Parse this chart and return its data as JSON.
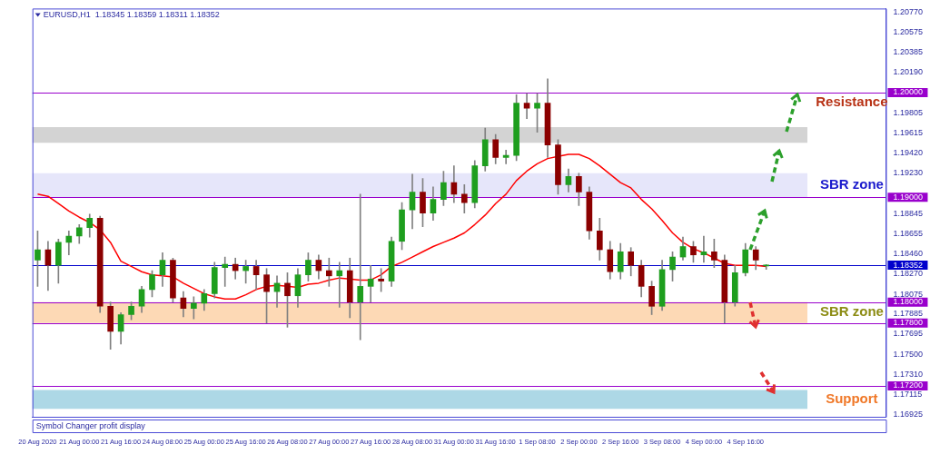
{
  "chart_data": {
    "type": "candlestick",
    "title": "EURUSD,H1  1.18345 1.18359 1.18311 1.18352",
    "categories": [
      "20 Aug 2020",
      null,
      null,
      null,
      "21 Aug 00:00",
      null,
      null,
      null,
      "21 Aug 16:00",
      null,
      null,
      null,
      "24 Aug 08:00",
      null,
      null,
      null,
      "25 Aug 00:00",
      null,
      null,
      null,
      "25 Aug 16:00",
      null,
      null,
      null,
      "26 Aug 08:00",
      null,
      null,
      null,
      "27 Aug 00:00",
      null,
      null,
      null,
      "27 Aug 16:00",
      null,
      null,
      null,
      "28 Aug 08:00",
      null,
      null,
      null,
      "31 Aug 00:00",
      null,
      null,
      null,
      "31 Aug 16:00",
      null,
      null,
      null,
      "1 Sep 08:00",
      null,
      null,
      null,
      "2 Sep 00:00",
      null,
      null,
      null,
      "2 Sep 16:00",
      null,
      null,
      null,
      "3 Sep 08:00",
      null,
      null,
      null,
      "4 Sep 00:00",
      null,
      null,
      null,
      "4 Sep 16:00",
      null,
      null,
      null,
      null,
      null,
      null,
      null,
      null,
      null,
      null,
      null,
      null,
      null
    ],
    "ohlc": [
      [
        1.184,
        1.1868,
        1.1815,
        1.185
      ],
      [
        1.185,
        1.1858,
        1.1811,
        1.1835
      ],
      [
        1.1835,
        1.186,
        1.1818,
        1.1857
      ],
      [
        1.1857,
        1.1868,
        1.1845,
        1.1863
      ],
      [
        1.1863,
        1.1874,
        1.1856,
        1.1871
      ],
      [
        1.1871,
        1.1884,
        1.1862,
        1.188
      ],
      [
        1.188,
        1.1882,
        1.179,
        1.1796
      ],
      [
        1.1796,
        1.18,
        1.1755,
        1.1772
      ],
      [
        1.1772,
        1.179,
        1.176,
        1.1788
      ],
      [
        1.1788,
        1.18,
        1.1783,
        1.1796
      ],
      [
        1.1796,
        1.1815,
        1.179,
        1.1812
      ],
      [
        1.1812,
        1.183,
        1.1805,
        1.1826
      ],
      [
        1.1826,
        1.1847,
        1.1815,
        1.184
      ],
      [
        1.184,
        1.1842,
        1.18,
        1.1804
      ],
      [
        1.1804,
        1.181,
        1.1786,
        1.1794
      ],
      [
        1.1794,
        1.1805,
        1.1784,
        1.1799
      ],
      [
        1.1799,
        1.1812,
        1.1792,
        1.1808
      ],
      [
        1.1808,
        1.1838,
        1.1804,
        1.1833
      ],
      [
        1.1833,
        1.1843,
        1.1815,
        1.1836
      ],
      [
        1.1836,
        1.1842,
        1.1822,
        1.183
      ],
      [
        1.183,
        1.184,
        1.1818,
        1.1834
      ],
      [
        1.1834,
        1.184,
        1.1812,
        1.1826
      ],
      [
        1.1826,
        1.1832,
        1.178,
        1.181
      ],
      [
        1.181,
        1.1825,
        1.1795,
        1.1818
      ],
      [
        1.1818,
        1.1828,
        1.1776,
        1.1806
      ],
      [
        1.1806,
        1.1832,
        1.1795,
        1.1826
      ],
      [
        1.1826,
        1.1847,
        1.182,
        1.184
      ],
      [
        1.184,
        1.1845,
        1.1822,
        1.183
      ],
      [
        1.183,
        1.1842,
        1.1815,
        1.1825
      ],
      [
        1.1825,
        1.1838,
        1.1795,
        1.183
      ],
      [
        1.183,
        1.1842,
        1.1785,
        1.18
      ],
      [
        1.18,
        1.1903,
        1.1764,
        1.1815
      ],
      [
        1.1815,
        1.1835,
        1.18,
        1.1822
      ],
      [
        1.1822,
        1.1832,
        1.181,
        1.182
      ],
      [
        1.182,
        1.1862,
        1.1815,
        1.1858
      ],
      [
        1.1858,
        1.1895,
        1.185,
        1.1888
      ],
      [
        1.1888,
        1.1922,
        1.187,
        1.1905
      ],
      [
        1.1905,
        1.1918,
        1.1872,
        1.1885
      ],
      [
        1.1885,
        1.191,
        1.1878,
        1.1898
      ],
      [
        1.1898,
        1.1925,
        1.1892,
        1.1914
      ],
      [
        1.1914,
        1.193,
        1.1895,
        1.1903
      ],
      [
        1.1903,
        1.1912,
        1.1885,
        1.1895
      ],
      [
        1.1895,
        1.1935,
        1.189,
        1.193
      ],
      [
        1.193,
        1.1966,
        1.1925,
        1.1955
      ],
      [
        1.1955,
        1.196,
        1.1932,
        1.1938
      ],
      [
        1.1938,
        1.1945,
        1.1932,
        1.194
      ],
      [
        1.194,
        1.1998,
        1.1935,
        1.199
      ],
      [
        1.199,
        1.1999,
        1.1975,
        1.1985
      ],
      [
        1.1985,
        1.1999,
        1.1962,
        1.199
      ],
      [
        1.199,
        1.2013,
        1.1938,
        1.195
      ],
      [
        1.195,
        1.1955,
        1.1903,
        1.1912
      ],
      [
        1.1912,
        1.1927,
        1.1905,
        1.192
      ],
      [
        1.192,
        1.1923,
        1.1892,
        1.1905
      ],
      [
        1.1905,
        1.191,
        1.186,
        1.1868
      ],
      [
        1.1868,
        1.188,
        1.184,
        1.185
      ],
      [
        1.185,
        1.1858,
        1.1822,
        1.1829
      ],
      [
        1.1829,
        1.1856,
        1.1822,
        1.1848
      ],
      [
        1.1848,
        1.1852,
        1.1825,
        1.1835
      ],
      [
        1.1835,
        1.184,
        1.1805,
        1.1815
      ],
      [
        1.1815,
        1.182,
        1.1788,
        1.1796
      ],
      [
        1.1796,
        1.184,
        1.1792,
        1.1831
      ],
      [
        1.1831,
        1.1848,
        1.182,
        1.1843
      ],
      [
        1.1843,
        1.1862,
        1.184,
        1.1853
      ],
      [
        1.1853,
        1.1858,
        1.1838,
        1.1845
      ],
      [
        1.1845,
        1.1863,
        1.1838,
        1.1848
      ],
      [
        1.1848,
        1.186,
        1.1833,
        1.184
      ],
      [
        1.184,
        1.1845,
        1.178,
        1.18
      ],
      [
        1.18,
        1.1835,
        1.1796,
        1.1828
      ],
      [
        1.1828,
        1.1856,
        1.1825,
        1.185
      ],
      [
        1.185,
        1.1853,
        1.1831,
        1.184
      ],
      [
        1.18345,
        1.18359,
        1.18311,
        1.18352
      ],
      null,
      null,
      null,
      null,
      null,
      null,
      null,
      null,
      null,
      null,
      null
    ],
    "series": [
      {
        "type": "line",
        "color": "#ff0000",
        "values": [
          1.1903,
          1.1901,
          1.1894,
          1.1887,
          1.1881,
          1.1876,
          1.1869,
          1.1857,
          1.1839,
          1.1834,
          1.1829,
          1.1826,
          1.1825,
          1.1824,
          1.1818,
          1.1813,
          1.1808,
          1.1805,
          1.1803,
          1.1803,
          1.1807,
          1.1812,
          1.1815,
          1.1816,
          1.1815,
          1.1814,
          1.1817,
          1.1818,
          1.1821,
          1.1823,
          1.1822,
          1.1821,
          1.1821,
          1.1826,
          1.1834,
          1.1838,
          1.1843,
          1.1848,
          1.1853,
          1.1857,
          1.1861,
          1.1866,
          1.1874,
          1.1883,
          1.1894,
          1.1903,
          1.1916,
          1.1925,
          1.1932,
          1.1937,
          1.1939,
          1.1941,
          1.1941,
          1.1937,
          1.193,
          1.1922,
          1.1914,
          1.1909,
          1.1898,
          1.1889,
          1.1878,
          1.1866,
          1.1857,
          1.1851,
          1.1847,
          1.1842,
          1.1837,
          1.1835,
          1.1835,
          1.1835,
          1.1834,
          null,
          null,
          null,
          null,
          null,
          null,
          null,
          null,
          null,
          null,
          null
        ]
      }
    ],
    "ylim": [
      1.16905,
      1.20802
    ],
    "yticks": [
      {
        "value": 1.2077,
        "label": "1.20770"
      },
      {
        "value": 1.20575,
        "label": "1.20575"
      },
      {
        "value": 1.20385,
        "label": "1.20385"
      },
      {
        "value": 1.2019,
        "label": "1.20190"
      },
      {
        "value": 1.19805,
        "label": "1.19805"
      },
      {
        "value": 1.19615,
        "label": "1.19615"
      },
      {
        "value": 1.1942,
        "label": "1.19420"
      },
      {
        "value": 1.1923,
        "label": "1.19230"
      },
      {
        "value": 1.2,
        "label": "1.20000"
      },
      {
        "value": 1.19,
        "label": "1.19000"
      },
      {
        "value": 1.18352,
        "label": "1.18352"
      },
      {
        "value": 1.18,
        "label": "1.18000"
      },
      {
        "value": 1.178,
        "label": "1.17800"
      },
      {
        "value": 1.172,
        "label": "1.17200"
      },
      {
        "value": 1.18845,
        "label": "1.18845"
      },
      {
        "value": 1.18655,
        "label": "1.18655"
      },
      {
        "value": 1.1846,
        "label": "1.18460"
      },
      {
        "value": 1.1827,
        "label": "1.18270"
      },
      {
        "value": 1.18075,
        "label": "1.18075"
      },
      {
        "value": 1.17885,
        "label": "1.17885"
      },
      {
        "value": 1.17695,
        "label": "1.17695"
      },
      {
        "value": 1.175,
        "label": "1.17500"
      },
      {
        "value": 1.1731,
        "label": "1.17310"
      },
      {
        "value": 1.17115,
        "label": "1.17115"
      },
      {
        "value": 1.16925,
        "label": "1.16925"
      }
    ],
    "bands": [
      {
        "axis": "y",
        "from": 1.1952,
        "to": 1.1967,
        "color": "#d3d3d3"
      },
      {
        "axis": "y",
        "from": 1.19,
        "to": 1.1923,
        "color": "#e6e6fa",
        "label": "SBR zone"
      },
      {
        "axis": "y",
        "from": 1.178,
        "to": 1.18,
        "color": "#fdd9b5",
        "label": "SBR zone"
      },
      {
        "axis": "y",
        "from": 1.1698,
        "to": 1.1716,
        "color": "#add8e6",
        "label": "Support"
      }
    ],
    "ref_lines": [
      {
        "axis": "y",
        "value": 1.2,
        "label": "Resistance",
        "color": "#9900cc"
      },
      {
        "axis": "y",
        "value": 1.19,
        "color": "#9900cc"
      },
      {
        "axis": "y",
        "value": 1.18352,
        "color": "#0000cc"
      },
      {
        "axis": "y",
        "value": 1.18,
        "color": "#9900cc"
      },
      {
        "axis": "y",
        "value": 1.178,
        "color": "#9900cc"
      },
      {
        "axis": "y",
        "value": 1.172,
        "color": "#9900cc"
      }
    ],
    "annotations": [
      "Symbol Changer profit display"
    ]
  }
}
